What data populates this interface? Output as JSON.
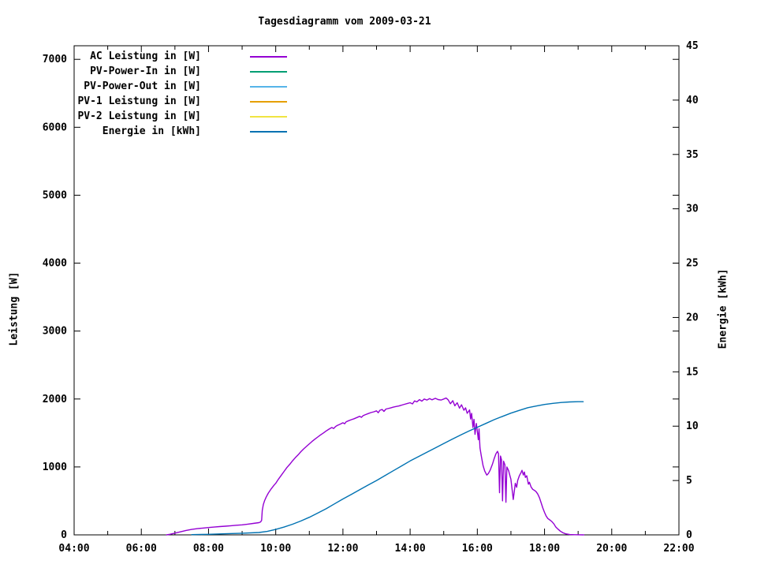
{
  "chart": {
    "title": "Tagesdiagramm vom 2009-03-21",
    "ylabel": "Leistung [W]",
    "y2label": "Energie [kWh]"
  },
  "chart_data": {
    "type": "line",
    "title": "Tagesdiagramm vom 2009-03-21",
    "background": "#ffffff",
    "border_color": "#000000",
    "x_axis": {
      "label": "",
      "unit": "time",
      "range_hours": [
        4,
        22
      ],
      "major_ticks": [
        {
          "hour": 4,
          "label": "04:00"
        },
        {
          "hour": 6,
          "label": "06:00"
        },
        {
          "hour": 8,
          "label": "08:00"
        },
        {
          "hour": 10,
          "label": "10:00"
        },
        {
          "hour": 12,
          "label": "12:00"
        },
        {
          "hour": 14,
          "label": "14:00"
        },
        {
          "hour": 16,
          "label": "16:00"
        },
        {
          "hour": 18,
          "label": "18:00"
        },
        {
          "hour": 20,
          "label": "20:00"
        },
        {
          "hour": 22,
          "label": "22:00"
        }
      ],
      "minor_tick_hours": [
        5,
        7,
        9,
        11,
        13,
        15,
        17,
        19,
        21
      ]
    },
    "y_axis": {
      "label": "Leistung [W]",
      "range": [
        0,
        7200
      ],
      "ticks": [
        0,
        1000,
        2000,
        3000,
        4000,
        5000,
        6000,
        7000
      ],
      "mirrored_on_right": true
    },
    "y2_axis": {
      "label": "Energie [kWh]",
      "range": [
        0,
        45
      ],
      "ticks": [
        0,
        5,
        10,
        15,
        20,
        25,
        30,
        35,
        40,
        45
      ]
    },
    "legend_position": "top-left-inside",
    "series": [
      {
        "name": "AC Leistung in [W]",
        "color": "#9400d3",
        "axis": "y",
        "points": [
          [
            6.75,
            0
          ],
          [
            6.85,
            8
          ],
          [
            7.0,
            25
          ],
          [
            7.17,
            45
          ],
          [
            7.33,
            65
          ],
          [
            7.5,
            80
          ],
          [
            7.67,
            92
          ],
          [
            7.83,
            100
          ],
          [
            8.0,
            108
          ],
          [
            8.17,
            115
          ],
          [
            8.33,
            122
          ],
          [
            8.5,
            128
          ],
          [
            8.67,
            135
          ],
          [
            8.83,
            142
          ],
          [
            9.0,
            148
          ],
          [
            9.17,
            158
          ],
          [
            9.33,
            168
          ],
          [
            9.5,
            180
          ],
          [
            9.55,
            190
          ],
          [
            9.58,
            215
          ],
          [
            9.6,
            360
          ],
          [
            9.63,
            445
          ],
          [
            9.67,
            505
          ],
          [
            9.72,
            560
          ],
          [
            9.78,
            615
          ],
          [
            9.87,
            680
          ],
          [
            9.95,
            730
          ],
          [
            10.0,
            760
          ],
          [
            10.08,
            820
          ],
          [
            10.17,
            880
          ],
          [
            10.25,
            935
          ],
          [
            10.33,
            990
          ],
          [
            10.42,
            1040
          ],
          [
            10.5,
            1090
          ],
          [
            10.58,
            1135
          ],
          [
            10.67,
            1180
          ],
          [
            10.75,
            1225
          ],
          [
            10.83,
            1265
          ],
          [
            10.92,
            1305
          ],
          [
            11.0,
            1340
          ],
          [
            11.08,
            1375
          ],
          [
            11.17,
            1410
          ],
          [
            11.25,
            1440
          ],
          [
            11.33,
            1470
          ],
          [
            11.42,
            1500
          ],
          [
            11.5,
            1530
          ],
          [
            11.58,
            1555
          ],
          [
            11.67,
            1580
          ],
          [
            11.72,
            1565
          ],
          [
            11.78,
            1595
          ],
          [
            11.83,
            1610
          ],
          [
            11.92,
            1630
          ],
          [
            12.0,
            1650
          ],
          [
            12.05,
            1635
          ],
          [
            12.1,
            1665
          ],
          [
            12.17,
            1680
          ],
          [
            12.25,
            1695
          ],
          [
            12.33,
            1710
          ],
          [
            12.42,
            1728
          ],
          [
            12.5,
            1745
          ],
          [
            12.55,
            1730
          ],
          [
            12.6,
            1755
          ],
          [
            12.67,
            1770
          ],
          [
            12.75,
            1785
          ],
          [
            12.83,
            1800
          ],
          [
            12.92,
            1812
          ],
          [
            13.0,
            1825
          ],
          [
            13.05,
            1798
          ],
          [
            13.1,
            1835
          ],
          [
            13.17,
            1845
          ],
          [
            13.22,
            1818
          ],
          [
            13.28,
            1852
          ],
          [
            13.33,
            1858
          ],
          [
            13.42,
            1868
          ],
          [
            13.5,
            1880
          ],
          [
            13.58,
            1890
          ],
          [
            13.67,
            1898
          ],
          [
            13.75,
            1910
          ],
          [
            13.83,
            1922
          ],
          [
            13.92,
            1935
          ],
          [
            14.0,
            1945
          ],
          [
            14.07,
            1928
          ],
          [
            14.13,
            1972
          ],
          [
            14.2,
            1958
          ],
          [
            14.28,
            1990
          ],
          [
            14.35,
            1968
          ],
          [
            14.42,
            2000
          ],
          [
            14.5,
            1985
          ],
          [
            14.58,
            2005
          ],
          [
            14.65,
            1988
          ],
          [
            14.75,
            2010
          ],
          [
            14.83,
            1992
          ],
          [
            14.92,
            1985
          ],
          [
            15.0,
            2000
          ],
          [
            15.07,
            2015
          ],
          [
            15.13,
            1988
          ],
          [
            15.2,
            1930
          ],
          [
            15.27,
            1975
          ],
          [
            15.33,
            1900
          ],
          [
            15.4,
            1945
          ],
          [
            15.47,
            1865
          ],
          [
            15.53,
            1915
          ],
          [
            15.6,
            1835
          ],
          [
            15.65,
            1870
          ],
          [
            15.7,
            1790
          ],
          [
            15.77,
            1840
          ],
          [
            15.8,
            1705
          ],
          [
            15.83,
            1790
          ],
          [
            15.87,
            1580
          ],
          [
            15.9,
            1700
          ],
          [
            15.93,
            1480
          ],
          [
            15.97,
            1640
          ],
          [
            16.0,
            1530
          ],
          [
            16.03,
            1400
          ],
          [
            16.05,
            1560
          ],
          [
            16.08,
            1280
          ],
          [
            16.12,
            1160
          ],
          [
            16.17,
            1020
          ],
          [
            16.22,
            940
          ],
          [
            16.28,
            880
          ],
          [
            16.33,
            905
          ],
          [
            16.38,
            950
          ],
          [
            16.45,
            1040
          ],
          [
            16.5,
            1120
          ],
          [
            16.55,
            1190
          ],
          [
            16.6,
            1230
          ],
          [
            16.63,
            1195
          ],
          [
            16.66,
            620
          ],
          [
            16.69,
            1160
          ],
          [
            16.72,
            1105
          ],
          [
            16.75,
            500
          ],
          [
            16.78,
            1085
          ],
          [
            16.82,
            1030
          ],
          [
            16.85,
            480
          ],
          [
            16.88,
            1000
          ],
          [
            16.93,
            945
          ],
          [
            16.97,
            870
          ],
          [
            17.0,
            820
          ],
          [
            17.03,
            690
          ],
          [
            17.07,
            520
          ],
          [
            17.1,
            640
          ],
          [
            17.13,
            760
          ],
          [
            17.17,
            700
          ],
          [
            17.2,
            800
          ],
          [
            17.25,
            870
          ],
          [
            17.3,
            915
          ],
          [
            17.33,
            950
          ],
          [
            17.37,
            880
          ],
          [
            17.4,
            925
          ],
          [
            17.43,
            845
          ],
          [
            17.47,
            870
          ],
          [
            17.52,
            745
          ],
          [
            17.55,
            775
          ],
          [
            17.6,
            705
          ],
          [
            17.65,
            670
          ],
          [
            17.7,
            655
          ],
          [
            17.75,
            635
          ],
          [
            17.8,
            600
          ],
          [
            17.85,
            545
          ],
          [
            17.9,
            470
          ],
          [
            17.95,
            395
          ],
          [
            18.0,
            330
          ],
          [
            18.05,
            275
          ],
          [
            18.1,
            240
          ],
          [
            18.17,
            215
          ],
          [
            18.22,
            195
          ],
          [
            18.28,
            160
          ],
          [
            18.33,
            120
          ],
          [
            18.4,
            85
          ],
          [
            18.47,
            55
          ],
          [
            18.55,
            30
          ],
          [
            18.63,
            15
          ],
          [
            18.75,
            5
          ],
          [
            18.9,
            2
          ],
          [
            19.17,
            0
          ]
        ]
      },
      {
        "name": "PV-Power-In in [W]",
        "color": "#009e73",
        "axis": "y",
        "points": []
      },
      {
        "name": "PV-Power-Out in [W]",
        "color": "#56b4e9",
        "axis": "y",
        "points": []
      },
      {
        "name": "PV-1 Leistung in [W]",
        "color": "#e69f00",
        "axis": "y",
        "points": []
      },
      {
        "name": "PV-2 Leistung in [W]",
        "color": "#f0e442",
        "axis": "y",
        "points": []
      },
      {
        "name": "Energie in [kWh]",
        "color": "#0072b2",
        "axis": "y2",
        "points": [
          [
            7.5,
            0.02
          ],
          [
            8.0,
            0.05
          ],
          [
            8.5,
            0.1
          ],
          [
            9.0,
            0.15
          ],
          [
            9.5,
            0.22
          ],
          [
            9.75,
            0.32
          ],
          [
            10.0,
            0.5
          ],
          [
            10.25,
            0.72
          ],
          [
            10.5,
            0.98
          ],
          [
            10.75,
            1.28
          ],
          [
            11.0,
            1.62
          ],
          [
            11.25,
            2.0
          ],
          [
            11.5,
            2.4
          ],
          [
            11.75,
            2.85
          ],
          [
            12.0,
            3.3
          ],
          [
            12.25,
            3.72
          ],
          [
            12.5,
            4.15
          ],
          [
            12.75,
            4.58
          ],
          [
            13.0,
            5.0
          ],
          [
            13.25,
            5.45
          ],
          [
            13.5,
            5.9
          ],
          [
            13.75,
            6.35
          ],
          [
            14.0,
            6.8
          ],
          [
            14.25,
            7.2
          ],
          [
            14.5,
            7.6
          ],
          [
            14.75,
            8.0
          ],
          [
            15.0,
            8.4
          ],
          [
            15.25,
            8.8
          ],
          [
            15.5,
            9.18
          ],
          [
            15.75,
            9.55
          ],
          [
            16.0,
            9.9
          ],
          [
            16.25,
            10.25
          ],
          [
            16.5,
            10.6
          ],
          [
            16.75,
            10.9
          ],
          [
            17.0,
            11.2
          ],
          [
            17.25,
            11.45
          ],
          [
            17.5,
            11.7
          ],
          [
            17.75,
            11.85
          ],
          [
            18.0,
            12.0
          ],
          [
            18.25,
            12.1
          ],
          [
            18.5,
            12.18
          ],
          [
            18.75,
            12.23
          ],
          [
            19.0,
            12.25
          ],
          [
            19.15,
            12.25
          ]
        ]
      }
    ]
  }
}
